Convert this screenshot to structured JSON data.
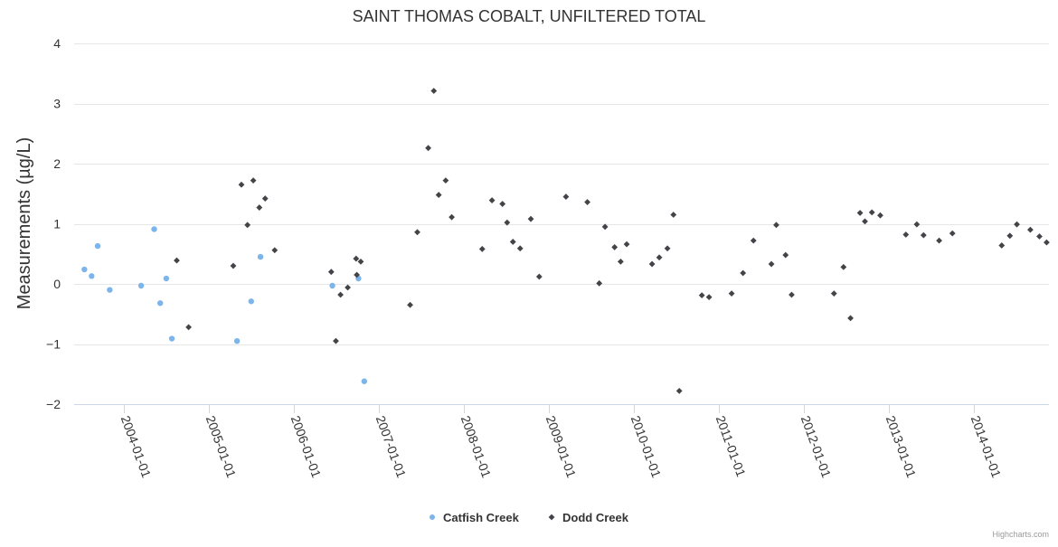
{
  "chart_data": {
    "type": "scatter",
    "title": "SAINT THOMAS COBALT, UNFILTERED TOTAL",
    "ylabel": "Measurements (µg/L)",
    "xlabel": "",
    "ylim": [
      -2,
      4
    ],
    "yticks": [
      -2,
      -1,
      0,
      1,
      2,
      3,
      4
    ],
    "ytick_labels": [
      "−2",
      "−1",
      "0",
      "1",
      "2",
      "3",
      "4"
    ],
    "xlim": [
      "2003-06-01",
      "2014-11-20"
    ],
    "xticks": [
      "2004-01-01",
      "2005-01-01",
      "2006-01-01",
      "2007-01-01",
      "2008-01-01",
      "2009-01-01",
      "2010-01-01",
      "2011-01-01",
      "2012-01-01",
      "2013-01-01",
      "2014-01-01"
    ],
    "grid": true,
    "legend_position": "bottom-center",
    "credits": "Highcharts.com",
    "series": [
      {
        "name": "Catfish Creek",
        "color": "#7cb5ec",
        "marker": "circle",
        "points": [
          {
            "x": "2003-07-15",
            "y": 0.24
          },
          {
            "x": "2003-08-15",
            "y": 0.13
          },
          {
            "x": "2003-09-10",
            "y": 0.63
          },
          {
            "x": "2003-11-01",
            "y": -0.1
          },
          {
            "x": "2004-03-15",
            "y": -0.03
          },
          {
            "x": "2004-05-10",
            "y": 0.91
          },
          {
            "x": "2004-06-05",
            "y": -0.32
          },
          {
            "x": "2004-07-01",
            "y": 0.09
          },
          {
            "x": "2004-07-25",
            "y": -0.91
          },
          {
            "x": "2005-05-01",
            "y": -0.95
          },
          {
            "x": "2005-07-01",
            "y": -0.29
          },
          {
            "x": "2005-08-10",
            "y": 0.45
          },
          {
            "x": "2006-06-15",
            "y": -0.03
          },
          {
            "x": "2006-10-05",
            "y": 0.09
          },
          {
            "x": "2006-10-30",
            "y": -1.62
          }
        ]
      },
      {
        "name": "Dodd Creek",
        "color": "#434348",
        "marker": "diamond",
        "points": [
          {
            "x": "2004-08-15",
            "y": 0.39
          },
          {
            "x": "2004-10-05",
            "y": -0.72
          },
          {
            "x": "2005-04-15",
            "y": 0.3
          },
          {
            "x": "2005-05-20",
            "y": 1.65
          },
          {
            "x": "2005-06-15",
            "y": 0.98
          },
          {
            "x": "2005-07-10",
            "y": 1.72
          },
          {
            "x": "2005-08-05",
            "y": 1.27
          },
          {
            "x": "2005-08-30",
            "y": 1.42
          },
          {
            "x": "2005-10-10",
            "y": 0.56
          },
          {
            "x": "2006-06-10",
            "y": 0.2
          },
          {
            "x": "2006-06-30",
            "y": -0.95
          },
          {
            "x": "2006-07-20",
            "y": -0.18
          },
          {
            "x": "2006-08-20",
            "y": -0.06
          },
          {
            "x": "2006-09-25",
            "y": 0.42
          },
          {
            "x": "2006-09-28",
            "y": 0.15
          },
          {
            "x": "2006-10-15",
            "y": 0.37
          },
          {
            "x": "2007-05-15",
            "y": -0.35
          },
          {
            "x": "2007-06-15",
            "y": 0.86
          },
          {
            "x": "2007-08-01",
            "y": 2.26
          },
          {
            "x": "2007-08-25",
            "y": 3.21
          },
          {
            "x": "2007-09-15",
            "y": 1.48
          },
          {
            "x": "2007-10-15",
            "y": 1.72
          },
          {
            "x": "2007-11-10",
            "y": 1.11
          },
          {
            "x": "2008-03-20",
            "y": 0.58
          },
          {
            "x": "2008-05-01",
            "y": 1.39
          },
          {
            "x": "2008-06-15",
            "y": 1.33
          },
          {
            "x": "2008-07-05",
            "y": 1.02
          },
          {
            "x": "2008-07-30",
            "y": 0.7
          },
          {
            "x": "2008-08-30",
            "y": 0.59
          },
          {
            "x": "2008-10-15",
            "y": 1.08
          },
          {
            "x": "2008-11-20",
            "y": 0.12
          },
          {
            "x": "2009-03-15",
            "y": 1.45
          },
          {
            "x": "2009-06-15",
            "y": 1.36
          },
          {
            "x": "2009-08-05",
            "y": 0.01
          },
          {
            "x": "2009-08-30",
            "y": 0.95
          },
          {
            "x": "2009-10-10",
            "y": 0.61
          },
          {
            "x": "2009-11-05",
            "y": 0.37
          },
          {
            "x": "2009-12-01",
            "y": 0.66
          },
          {
            "x": "2010-03-20",
            "y": 0.33
          },
          {
            "x": "2010-04-20",
            "y": 0.44
          },
          {
            "x": "2010-05-25",
            "y": 0.59
          },
          {
            "x": "2010-06-20",
            "y": 1.15
          },
          {
            "x": "2010-07-15",
            "y": -1.78
          },
          {
            "x": "2010-10-20",
            "y": -0.19
          },
          {
            "x": "2010-11-20",
            "y": -0.22
          },
          {
            "x": "2011-02-25",
            "y": -0.16
          },
          {
            "x": "2011-04-15",
            "y": 0.18
          },
          {
            "x": "2011-05-30",
            "y": 0.72
          },
          {
            "x": "2011-08-15",
            "y": 0.33
          },
          {
            "x": "2011-09-05",
            "y": 0.98
          },
          {
            "x": "2011-10-15",
            "y": 0.48
          },
          {
            "x": "2011-11-10",
            "y": -0.18
          },
          {
            "x": "2012-05-10",
            "y": -0.16
          },
          {
            "x": "2012-06-20",
            "y": 0.28
          },
          {
            "x": "2012-07-20",
            "y": -0.57
          },
          {
            "x": "2012-08-30",
            "y": 1.18
          },
          {
            "x": "2012-09-20",
            "y": 1.04
          },
          {
            "x": "2012-10-20",
            "y": 1.19
          },
          {
            "x": "2012-11-25",
            "y": 1.14
          },
          {
            "x": "2013-03-15",
            "y": 0.82
          },
          {
            "x": "2013-05-01",
            "y": 0.99
          },
          {
            "x": "2013-05-30",
            "y": 0.81
          },
          {
            "x": "2013-08-05",
            "y": 0.72
          },
          {
            "x": "2013-10-01",
            "y": 0.84
          },
          {
            "x": "2014-05-01",
            "y": 0.64
          },
          {
            "x": "2014-06-05",
            "y": 0.8
          },
          {
            "x": "2014-07-05",
            "y": 0.99
          },
          {
            "x": "2014-09-01",
            "y": 0.9
          },
          {
            "x": "2014-10-10",
            "y": 0.79
          },
          {
            "x": "2014-11-10",
            "y": 0.69
          }
        ]
      }
    ]
  }
}
